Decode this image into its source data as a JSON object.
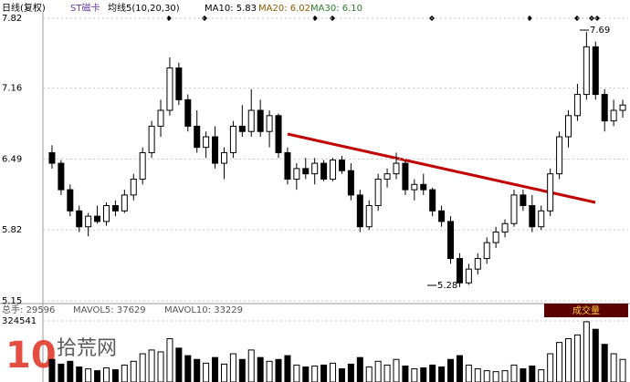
{
  "chart_data": {
    "type": "candlestick",
    "header": [
      "日线(复权)",
      "ST磁卡",
      "均线5(10,20,30)",
      "MA10: 5.83",
      "MA20: 6.02",
      "MA30: 6.10"
    ],
    "ylim": [
      5.15,
      7.82
    ],
    "yticks": [
      7.82,
      7.16,
      6.49,
      5.82,
      5.15
    ],
    "grid": true,
    "annotations": [
      "7.69",
      "5.28"
    ],
    "candles": [
      [
        6.55,
        6.62,
        6.4,
        6.45
      ],
      [
        6.45,
        6.48,
        6.15,
        6.2
      ],
      [
        6.2,
        6.25,
        5.95,
        6.0
      ],
      [
        6.0,
        6.05,
        5.8,
        5.85
      ],
      [
        5.85,
        5.98,
        5.76,
        5.95
      ],
      [
        5.95,
        6.05,
        5.88,
        5.9
      ],
      [
        5.9,
        6.08,
        5.86,
        6.05
      ],
      [
        6.05,
        6.1,
        5.95,
        6.0
      ],
      [
        6.0,
        6.2,
        5.98,
        6.15
      ],
      [
        6.15,
        6.35,
        6.1,
        6.3
      ],
      [
        6.3,
        6.6,
        6.25,
        6.55
      ],
      [
        6.55,
        6.85,
        6.5,
        6.8
      ],
      [
        6.8,
        7.05,
        6.7,
        6.95
      ],
      [
        6.95,
        7.45,
        6.9,
        7.35
      ],
      [
        7.35,
        7.4,
        7.0,
        7.05
      ],
      [
        7.05,
        7.1,
        6.75,
        6.8
      ],
      [
        6.8,
        6.95,
        6.55,
        6.6
      ],
      [
        6.6,
        6.75,
        6.5,
        6.7
      ],
      [
        6.7,
        6.8,
        6.4,
        6.45
      ],
      [
        6.45,
        6.6,
        6.3,
        6.55
      ],
      [
        6.55,
        6.85,
        6.5,
        6.8
      ],
      [
        6.8,
        7.0,
        6.7,
        6.75
      ],
      [
        6.75,
        7.15,
        6.7,
        6.95
      ],
      [
        6.95,
        7.05,
        6.7,
        6.75
      ],
      [
        6.75,
        6.95,
        6.6,
        6.9
      ],
      [
        6.9,
        6.92,
        6.5,
        6.55
      ],
      [
        6.55,
        6.6,
        6.25,
        6.3
      ],
      [
        6.3,
        6.45,
        6.2,
        6.4
      ],
      [
        6.4,
        6.5,
        6.3,
        6.35
      ],
      [
        6.35,
        6.5,
        6.25,
        6.45
      ],
      [
        6.45,
        6.48,
        6.28,
        6.3
      ],
      [
        6.3,
        6.5,
        6.28,
        6.48
      ],
      [
        6.48,
        6.52,
        6.35,
        6.38
      ],
      [
        6.38,
        6.45,
        6.1,
        6.15
      ],
      [
        6.15,
        6.2,
        5.8,
        5.85
      ],
      [
        5.85,
        6.1,
        5.82,
        6.05
      ],
      [
        6.05,
        6.35,
        6.0,
        6.3
      ],
      [
        6.3,
        6.4,
        6.22,
        6.35
      ],
      [
        6.35,
        6.55,
        6.3,
        6.45
      ],
      [
        6.45,
        6.48,
        6.15,
        6.2
      ],
      [
        6.2,
        6.3,
        6.1,
        6.25
      ],
      [
        6.25,
        6.35,
        6.15,
        6.2
      ],
      [
        6.2,
        6.22,
        5.95,
        6.0
      ],
      [
        6.0,
        6.05,
        5.85,
        5.9
      ],
      [
        5.9,
        5.95,
        5.5,
        5.55
      ],
      [
        5.55,
        5.6,
        5.28,
        5.32
      ],
      [
        5.32,
        5.5,
        5.3,
        5.45
      ],
      [
        5.45,
        5.6,
        5.4,
        5.55
      ],
      [
        5.55,
        5.75,
        5.5,
        5.7
      ],
      [
        5.7,
        5.85,
        5.65,
        5.8
      ],
      [
        5.8,
        5.92,
        5.75,
        5.88
      ],
      [
        5.88,
        6.2,
        5.85,
        6.15
      ],
      [
        6.15,
        6.2,
        6.0,
        6.05
      ],
      [
        6.05,
        6.15,
        5.8,
        5.85
      ],
      [
        5.85,
        6.05,
        5.82,
        6.0
      ],
      [
        6.0,
        6.4,
        5.95,
        6.35
      ],
      [
        6.35,
        6.75,
        6.3,
        6.7
      ],
      [
        6.7,
        6.95,
        6.6,
        6.9
      ],
      [
        6.9,
        7.2,
        6.85,
        7.1
      ],
      [
        7.1,
        7.69,
        7.05,
        7.55
      ],
      [
        7.55,
        7.6,
        7.05,
        7.1
      ],
      [
        7.1,
        7.15,
        6.75,
        6.85
      ],
      [
        6.85,
        7.05,
        6.8,
        6.95
      ],
      [
        6.95,
        7.05,
        6.88,
        7.0
      ]
    ],
    "volume_header": [
      "总手: 29596",
      "MAVOL5: 37629",
      "MAVOL10: 33229"
    ],
    "volume_title": "成交量",
    "volume_ylim": [
      0,
      324541
    ],
    "volume_yticks": [
      324541
    ],
    "volume": [
      120000,
      95000,
      110000,
      80000,
      70000,
      60000,
      75000,
      65000,
      90000,
      110000,
      150000,
      170000,
      160000,
      230000,
      180000,
      140000,
      120000,
      100000,
      130000,
      95000,
      150000,
      120000,
      170000,
      130000,
      110000,
      120000,
      140000,
      90000,
      80000,
      85000,
      90000,
      100000,
      70000,
      95000,
      130000,
      80000,
      110000,
      90000,
      120000,
      85000,
      70000,
      75000,
      90000,
      80000,
      120000,
      140000,
      90000,
      70000,
      60000,
      55000,
      60000,
      90000,
      70000,
      85000,
      65000,
      150000,
      210000,
      230000,
      250000,
      320000,
      280000,
      200000,
      150000,
      120000
    ],
    "watermark": [
      "10",
      "拾荒网"
    ]
  }
}
